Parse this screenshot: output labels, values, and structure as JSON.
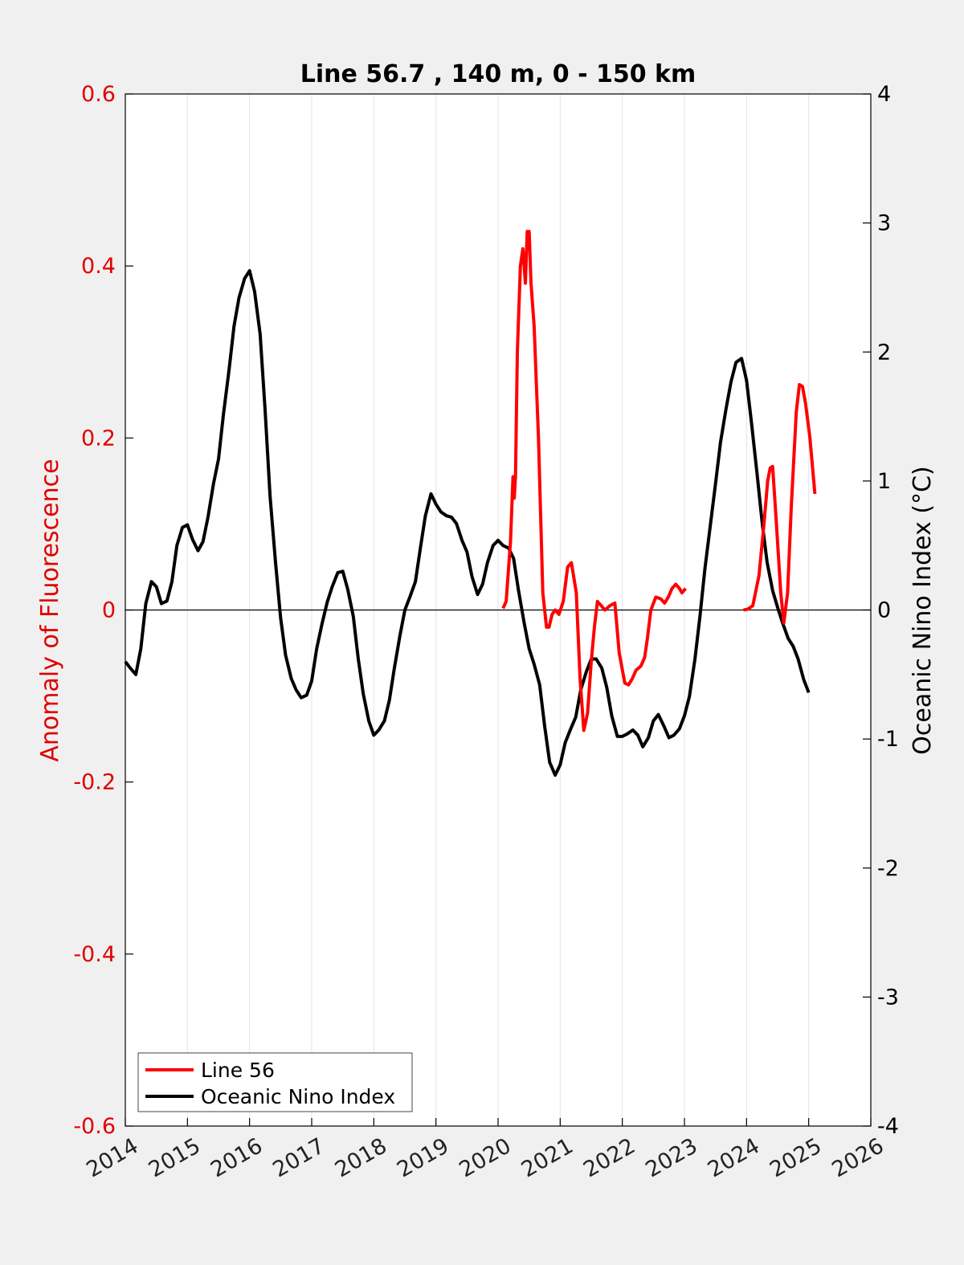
{
  "chart_data": {
    "type": "line",
    "title": "Line 56.7 , 140 m, 0 - 150 km",
    "xlabel": "",
    "ylabel_left": "Anomaly of Fluorescence",
    "ylabel_right": "Oceanic Nino Index (°C)",
    "xlim": [
      2014,
      2026
    ],
    "ylim_left": [
      -0.6,
      0.6
    ],
    "ylim_right": [
      -4,
      4
    ],
    "x_ticks": [
      "2014",
      "2015",
      "2016",
      "2017",
      "2018",
      "2019",
      "2020",
      "2021",
      "2022",
      "2023",
      "2024",
      "2025",
      "2026"
    ],
    "y_ticks_left": [
      "0.6",
      "0.4",
      "0.2",
      "0",
      "-0.2",
      "-0.4",
      "-0.6"
    ],
    "y_ticks_right": [
      "4",
      "3",
      "2",
      "1",
      "0",
      "-1",
      "-2",
      "-3",
      "-4"
    ],
    "grid": "vertical",
    "legend_position": "bottom-left",
    "colors": {
      "line56": "#ff0000",
      "oni": "#000000",
      "left_axis": "#e00000"
    },
    "series": [
      {
        "name": "Line 56",
        "axis": "left",
        "segments": [
          {
            "x": [
              2020.08,
              2020.13,
              2020.2,
              2020.24,
              2020.26,
              2020.28,
              2020.31,
              2020.36,
              2020.4,
              2020.44,
              2020.47,
              2020.5,
              2020.53,
              2020.58,
              2020.65,
              2020.72,
              2020.78,
              2020.82,
              2020.87,
              2020.92,
              2020.98,
              2021.05,
              2021.12,
              2021.18,
              2021.26,
              2021.32,
              2021.38,
              2021.44,
              2021.5,
              2021.55,
              2021.6,
              2021.66,
              2021.72,
              2021.8,
              2021.88,
              2021.95,
              2022.04,
              2022.1,
              2022.16,
              2022.22,
              2022.3,
              2022.36,
              2022.4,
              2022.46,
              2022.54,
              2022.62,
              2022.68,
              2022.74,
              2022.8,
              2022.86,
              2022.92,
              2022.96,
              2023.02
            ],
            "y": [
              0.002,
              0.01,
              0.08,
              0.155,
              0.13,
              0.155,
              0.3,
              0.4,
              0.42,
              0.38,
              0.44,
              0.44,
              0.38,
              0.33,
              0.2,
              0.02,
              -0.02,
              -0.02,
              -0.005,
              0.0,
              -0.005,
              0.01,
              0.05,
              0.055,
              0.02,
              -0.08,
              -0.14,
              -0.12,
              -0.06,
              -0.02,
              0.01,
              0.005,
              0.0,
              0.005,
              0.008,
              -0.05,
              -0.085,
              -0.087,
              -0.08,
              -0.07,
              -0.065,
              -0.055,
              -0.035,
              0.0,
              0.015,
              0.013,
              0.008,
              0.015,
              0.025,
              0.03,
              0.025,
              0.02,
              0.025
            ]
          },
          {
            "x": [
              2023.95,
              2024.02,
              2024.1,
              2024.2,
              2024.28,
              2024.34,
              2024.38,
              2024.42,
              2024.48,
              2024.55,
              2024.6,
              2024.66,
              2024.72,
              2024.8,
              2024.85,
              2024.9,
              2024.95,
              2025.02,
              2025.1
            ],
            "y": [
              0.0,
              0.001,
              0.005,
              0.04,
              0.1,
              0.15,
              0.165,
              0.167,
              0.1,
              0.02,
              -0.015,
              0.02,
              0.12,
              0.23,
              0.262,
              0.26,
              0.24,
              0.2,
              0.135
            ]
          }
        ]
      },
      {
        "name": "Oceanic Nino Index",
        "axis": "right",
        "x": [
          2014.0,
          2014.08,
          2014.17,
          2014.25,
          2014.33,
          2014.42,
          2014.5,
          2014.58,
          2014.67,
          2014.75,
          2014.83,
          2014.92,
          2015.0,
          2015.08,
          2015.17,
          2015.25,
          2015.33,
          2015.42,
          2015.5,
          2015.58,
          2015.67,
          2015.75,
          2015.83,
          2015.92,
          2016.0,
          2016.08,
          2016.17,
          2016.25,
          2016.33,
          2016.42,
          2016.5,
          2016.58,
          2016.67,
          2016.75,
          2016.83,
          2016.92,
          2017.0,
          2017.08,
          2017.17,
          2017.25,
          2017.33,
          2017.42,
          2017.5,
          2017.58,
          2017.67,
          2017.75,
          2017.83,
          2017.92,
          2018.0,
          2018.08,
          2018.17,
          2018.25,
          2018.33,
          2018.42,
          2018.5,
          2018.58,
          2018.67,
          2018.75,
          2018.83,
          2018.92,
          2019.0,
          2019.08,
          2019.17,
          2019.25,
          2019.33,
          2019.42,
          2019.5,
          2019.58,
          2019.67,
          2019.75,
          2019.83,
          2019.92,
          2020.0,
          2020.08,
          2020.17,
          2020.25,
          2020.33,
          2020.42,
          2020.5,
          2020.58,
          2020.67,
          2020.75,
          2020.83,
          2020.92,
          2021.0,
          2021.08,
          2021.17,
          2021.25,
          2021.33,
          2021.42,
          2021.5,
          2021.58,
          2021.67,
          2021.75,
          2021.83,
          2021.92,
          2022.0,
          2022.08,
          2022.17,
          2022.25,
          2022.33,
          2022.42,
          2022.5,
          2022.58,
          2022.67,
          2022.75,
          2022.83,
          2022.92,
          2023.0,
          2023.08,
          2023.17,
          2023.25,
          2023.33,
          2023.42,
          2023.5,
          2023.58,
          2023.67,
          2023.75,
          2023.83,
          2023.92,
          2024.0,
          2024.08,
          2024.17,
          2024.25,
          2024.33,
          2024.42,
          2024.5,
          2024.58,
          2024.67,
          2024.75,
          2024.83,
          2024.92,
          2025.0
        ],
        "y": [
          -0.4,
          -0.45,
          -0.5,
          -0.3,
          0.05,
          0.22,
          0.18,
          0.05,
          0.07,
          0.22,
          0.5,
          0.64,
          0.66,
          0.55,
          0.46,
          0.53,
          0.72,
          0.98,
          1.17,
          1.52,
          1.86,
          2.2,
          2.42,
          2.57,
          2.63,
          2.47,
          2.14,
          1.55,
          0.88,
          0.36,
          -0.06,
          -0.35,
          -0.53,
          -0.62,
          -0.68,
          -0.66,
          -0.55,
          -0.3,
          -0.1,
          0.06,
          0.18,
          0.29,
          0.3,
          0.16,
          -0.05,
          -0.38,
          -0.65,
          -0.86,
          -0.97,
          -0.93,
          -0.86,
          -0.7,
          -0.45,
          -0.2,
          0.0,
          0.1,
          0.22,
          0.48,
          0.73,
          0.9,
          0.82,
          0.76,
          0.73,
          0.72,
          0.67,
          0.54,
          0.45,
          0.26,
          0.12,
          0.2,
          0.37,
          0.5,
          0.54,
          0.5,
          0.48,
          0.4,
          0.15,
          -0.1,
          -0.3,
          -0.42,
          -0.58,
          -0.9,
          -1.18,
          -1.28,
          -1.2,
          -1.03,
          -0.92,
          -0.83,
          -0.62,
          -0.48,
          -0.38,
          -0.38,
          -0.45,
          -0.6,
          -0.82,
          -0.98,
          -0.98,
          -0.96,
          -0.93,
          -0.97,
          -1.06,
          -0.99,
          -0.86,
          -0.81,
          -0.9,
          -0.99,
          -0.97,
          -0.92,
          -0.82,
          -0.67,
          -0.38,
          -0.05,
          0.32,
          0.67,
          0.98,
          1.3,
          1.56,
          1.77,
          1.92,
          1.95,
          1.78,
          1.45,
          1.05,
          0.68,
          0.37,
          0.15,
          0.02,
          -0.1,
          -0.22,
          -0.28,
          -0.38,
          -0.54,
          -0.64
        ]
      }
    ]
  },
  "legend": {
    "items": [
      {
        "label": "Line 56",
        "color": "#ff0000"
      },
      {
        "label": "Oceanic Nino Index",
        "color": "#000000"
      }
    ]
  }
}
